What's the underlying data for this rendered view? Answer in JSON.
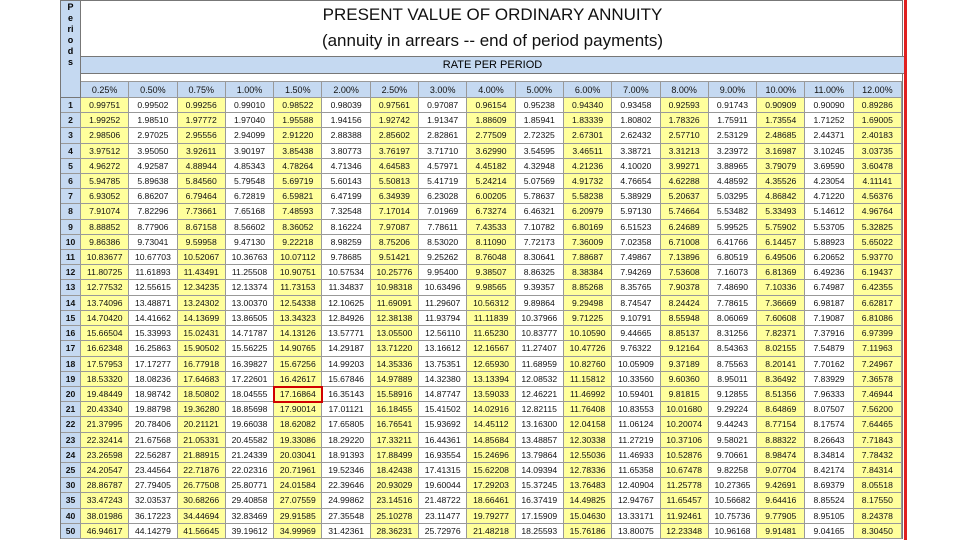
{
  "header": {
    "periods_label": "Periods",
    "title": "PRESENT VALUE OF ORDINARY ANNUITY",
    "subtitle": "(annuity in arrears -- end of period payments)",
    "rate_label": "RATE PER PERIOD"
  },
  "table": {
    "columns": [
      "0.25%",
      "0.50%",
      "0.75%",
      "1.00%",
      "1.50%",
      "2.00%",
      "2.50%",
      "3.00%",
      "4.00%",
      "5.00%",
      "6.00%",
      "7.00%",
      "8.00%",
      "9.00%",
      "10.00%",
      "11.00%",
      "12.00%"
    ],
    "periods": [
      "1",
      "2",
      "3",
      "4",
      "5",
      "6",
      "7",
      "8",
      "9",
      "10",
      "11",
      "12",
      "13",
      "14",
      "15",
      "16",
      "17",
      "18",
      "19",
      "20",
      "21",
      "22",
      "23",
      "24",
      "25",
      "30",
      "35",
      "40",
      "50"
    ],
    "rows": [
      [
        "0.99751",
        "0.99502",
        "0.99256",
        "0.99010",
        "0.98522",
        "0.98039",
        "0.97561",
        "0.97087",
        "0.96154",
        "0.95238",
        "0.94340",
        "0.93458",
        "0.92593",
        "0.91743",
        "0.90909",
        "0.90090",
        "0.89286"
      ],
      [
        "1.99252",
        "1.98510",
        "1.97772",
        "1.97040",
        "1.95588",
        "1.94156",
        "1.92742",
        "1.91347",
        "1.88609",
        "1.85941",
        "1.83339",
        "1.80802",
        "1.78326",
        "1.75911",
        "1.73554",
        "1.71252",
        "1.69005"
      ],
      [
        "2.98506",
        "2.97025",
        "2.95556",
        "2.94099",
        "2.91220",
        "2.88388",
        "2.85602",
        "2.82861",
        "2.77509",
        "2.72325",
        "2.67301",
        "2.62432",
        "2.57710",
        "2.53129",
        "2.48685",
        "2.44371",
        "2.40183"
      ],
      [
        "3.97512",
        "3.95050",
        "3.92611",
        "3.90197",
        "3.85438",
        "3.80773",
        "3.76197",
        "3.71710",
        "3.62990",
        "3.54595",
        "3.46511",
        "3.38721",
        "3.31213",
        "3.23972",
        "3.16987",
        "3.10245",
        "3.03735"
      ],
      [
        "4.96272",
        "4.92587",
        "4.88944",
        "4.85343",
        "4.78264",
        "4.71346",
        "4.64583",
        "4.57971",
        "4.45182",
        "4.32948",
        "4.21236",
        "4.10020",
        "3.99271",
        "3.88965",
        "3.79079",
        "3.69590",
        "3.60478"
      ],
      [
        "5.94785",
        "5.89638",
        "5.84560",
        "5.79548",
        "5.69719",
        "5.60143",
        "5.50813",
        "5.41719",
        "5.24214",
        "5.07569",
        "4.91732",
        "4.76654",
        "4.62288",
        "4.48592",
        "4.35526",
        "4.23054",
        "4.11141"
      ],
      [
        "6.93052",
        "6.86207",
        "6.79464",
        "6.72819",
        "6.59821",
        "6.47199",
        "6.34939",
        "6.23028",
        "6.00205",
        "5.78637",
        "5.58238",
        "5.38929",
        "5.20637",
        "5.03295",
        "4.86842",
        "4.71220",
        "4.56376"
      ],
      [
        "7.91074",
        "7.82296",
        "7.73661",
        "7.65168",
        "7.48593",
        "7.32548",
        "7.17014",
        "7.01969",
        "6.73274",
        "6.46321",
        "6.20979",
        "5.97130",
        "5.74664",
        "5.53482",
        "5.33493",
        "5.14612",
        "4.96764"
      ],
      [
        "8.88852",
        "8.77906",
        "8.67158",
        "8.56602",
        "8.36052",
        "8.16224",
        "7.97087",
        "7.78611",
        "7.43533",
        "7.10782",
        "6.80169",
        "6.51523",
        "6.24689",
        "5.99525",
        "5.75902",
        "5.53705",
        "5.32825"
      ],
      [
        "9.86386",
        "9.73041",
        "9.59958",
        "9.47130",
        "9.22218",
        "8.98259",
        "8.75206",
        "8.53020",
        "8.11090",
        "7.72173",
        "7.36009",
        "7.02358",
        "6.71008",
        "6.41766",
        "6.14457",
        "5.88923",
        "5.65022"
      ],
      [
        "10.83677",
        "10.67703",
        "10.52067",
        "10.36763",
        "10.07112",
        "9.78685",
        "9.51421",
        "9.25262",
        "8.76048",
        "8.30641",
        "7.88687",
        "7.49867",
        "7.13896",
        "6.80519",
        "6.49506",
        "6.20652",
        "5.93770"
      ],
      [
        "11.80725",
        "11.61893",
        "11.43491",
        "11.25508",
        "10.90751",
        "10.57534",
        "10.25776",
        "9.95400",
        "9.38507",
        "8.86325",
        "8.38384",
        "7.94269",
        "7.53608",
        "7.16073",
        "6.81369",
        "6.49236",
        "6.19437"
      ],
      [
        "12.77532",
        "12.55615",
        "12.34235",
        "12.13374",
        "11.73153",
        "11.34837",
        "10.98318",
        "10.63496",
        "9.98565",
        "9.39357",
        "8.85268",
        "8.35765",
        "7.90378",
        "7.48690",
        "7.10336",
        "6.74987",
        "6.42355"
      ],
      [
        "13.74096",
        "13.48871",
        "13.24302",
        "13.00370",
        "12.54338",
        "12.10625",
        "11.69091",
        "11.29607",
        "10.56312",
        "9.89864",
        "9.29498",
        "8.74547",
        "8.24424",
        "7.78615",
        "7.36669",
        "6.98187",
        "6.62817"
      ],
      [
        "14.70420",
        "14.41662",
        "14.13699",
        "13.86505",
        "13.34323",
        "12.84926",
        "12.38138",
        "11.93794",
        "11.11839",
        "10.37966",
        "9.71225",
        "9.10791",
        "8.55948",
        "8.06069",
        "7.60608",
        "7.19087",
        "6.81086"
      ],
      [
        "15.66504",
        "15.33993",
        "15.02431",
        "14.71787",
        "14.13126",
        "13.57771",
        "13.05500",
        "12.56110",
        "11.65230",
        "10.83777",
        "10.10590",
        "9.44665",
        "8.85137",
        "8.31256",
        "7.82371",
        "7.37916",
        "6.97399"
      ],
      [
        "16.62348",
        "16.25863",
        "15.90502",
        "15.56225",
        "14.90765",
        "14.29187",
        "13.71220",
        "13.16612",
        "12.16567",
        "11.27407",
        "10.47726",
        "9.76322",
        "9.12164",
        "8.54363",
        "8.02155",
        "7.54879",
        "7.11963"
      ],
      [
        "17.57953",
        "17.17277",
        "16.77918",
        "16.39827",
        "15.67256",
        "14.99203",
        "14.35336",
        "13.75351",
        "12.65930",
        "11.68959",
        "10.82760",
        "10.05909",
        "9.37189",
        "8.75563",
        "8.20141",
        "7.70162",
        "7.24967"
      ],
      [
        "18.53320",
        "18.08236",
        "17.64683",
        "17.22601",
        "16.42617",
        "15.67846",
        "14.97889",
        "14.32380",
        "13.13394",
        "12.08532",
        "11.15812",
        "10.33560",
        "9.60360",
        "8.95011",
        "8.36492",
        "7.83929",
        "7.36578"
      ],
      [
        "19.48449",
        "18.98742",
        "18.50802",
        "18.04555",
        "17.16864",
        "16.35143",
        "15.58916",
        "14.87747",
        "13.59033",
        "12.46221",
        "11.46992",
        "10.59401",
        "9.81815",
        "9.12855",
        "8.51356",
        "7.96333",
        "7.46944"
      ],
      [
        "20.43340",
        "19.88798",
        "19.36280",
        "18.85698",
        "17.90014",
        "17.01121",
        "16.18455",
        "15.41502",
        "14.02916",
        "12.82115",
        "11.76408",
        "10.83553",
        "10.01680",
        "9.29224",
        "8.64869",
        "8.07507",
        "7.56200"
      ],
      [
        "21.37995",
        "20.78406",
        "20.21121",
        "19.66038",
        "18.62082",
        "17.65805",
        "16.76541",
        "15.93692",
        "14.45112",
        "13.16300",
        "12.04158",
        "11.06124",
        "10.20074",
        "9.44243",
        "8.77154",
        "8.17574",
        "7.64465"
      ],
      [
        "22.32414",
        "21.67568",
        "21.05331",
        "20.45582",
        "19.33086",
        "18.29220",
        "17.33211",
        "16.44361",
        "14.85684",
        "13.48857",
        "12.30338",
        "11.27219",
        "10.37106",
        "9.58021",
        "8.88322",
        "8.26643",
        "7.71843"
      ],
      [
        "23.26598",
        "22.56287",
        "21.88915",
        "21.24339",
        "20.03041",
        "18.91393",
        "17.88499",
        "16.93554",
        "15.24696",
        "13.79864",
        "12.55036",
        "11.46933",
        "10.52876",
        "9.70661",
        "8.98474",
        "8.34814",
        "7.78432"
      ],
      [
        "24.20547",
        "23.44564",
        "22.71876",
        "22.02316",
        "20.71961",
        "19.52346",
        "18.42438",
        "17.41315",
        "15.62208",
        "14.09394",
        "12.78336",
        "11.65358",
        "10.67478",
        "9.82258",
        "9.07704",
        "8.42174",
        "7.84314"
      ],
      [
        "28.86787",
        "27.79405",
        "26.77508",
        "25.80771",
        "24.01584",
        "22.39646",
        "20.93029",
        "19.60044",
        "17.29203",
        "15.37245",
        "13.76483",
        "12.40904",
        "11.25778",
        "10.27365",
        "9.42691",
        "8.69379",
        "8.05518"
      ],
      [
        "33.47243",
        "32.03537",
        "30.68266",
        "29.40858",
        "27.07559",
        "24.99862",
        "23.14516",
        "21.48722",
        "18.66461",
        "16.37419",
        "14.49825",
        "12.94767",
        "11.65457",
        "10.56682",
        "9.64416",
        "8.85524",
        "8.17550"
      ],
      [
        "38.01986",
        "36.17223",
        "34.44694",
        "32.83469",
        "29.91585",
        "27.35548",
        "25.10278",
        "23.11477",
        "19.79277",
        "17.15909",
        "15.04630",
        "13.33171",
        "11.92461",
        "10.75736",
        "9.77905",
        "8.95105",
        "8.24378"
      ],
      [
        "46.94617",
        "44.14279",
        "41.56645",
        "39.19612",
        "34.99969",
        "31.42361",
        "28.36231",
        "25.72976",
        "21.48218",
        "18.25593",
        "15.76186",
        "13.80075",
        "12.23348",
        "10.96168",
        "9.91481",
        "9.04165",
        "8.30450"
      ]
    ]
  }
}
